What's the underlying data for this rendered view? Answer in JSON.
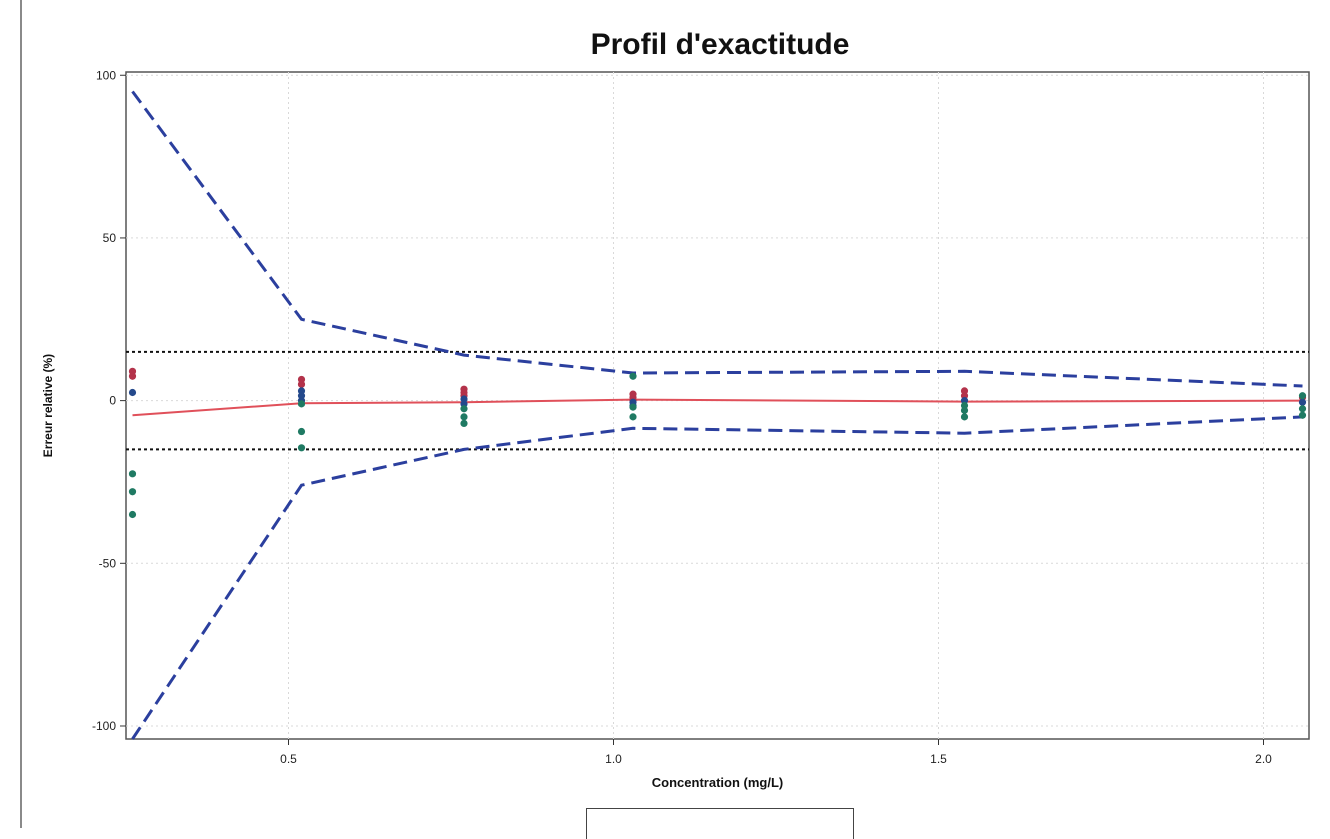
{
  "chart_data": {
    "type": "scatter",
    "title": "Profil d'exactitude",
    "xlabel": "Concentration (mg/L)",
    "ylabel": "Erreur relative (%)",
    "xlim": [
      0.25,
      2.07
    ],
    "ylim": [
      -104,
      101
    ],
    "x_ticks": [
      0.5,
      1.0,
      1.5,
      2.0
    ],
    "x_tick_labels": [
      "0.5",
      "1.0",
      "1.5",
      "2.0"
    ],
    "y_ticks": [
      -100,
      -50,
      0,
      50,
      100
    ],
    "y_tick_labels": [
      "-100",
      "-50",
      "0",
      "50",
      "100"
    ],
    "grid": true,
    "acceptance_limits": [
      15,
      -15
    ],
    "series": [
      {
        "role": "mean_bias",
        "color": "#e0505a",
        "x": [
          0.26,
          0.52,
          0.77,
          1.03,
          1.54,
          2.06
        ],
        "y": [
          -4.5,
          -0.8,
          -0.5,
          0.3,
          -0.3,
          0.0
        ]
      },
      {
        "role": "upper_tolerance",
        "color": "#2b3f9e",
        "x": [
          0.26,
          0.52,
          0.77,
          1.03,
          1.54,
          2.06
        ],
        "y": [
          95,
          25,
          14,
          8.5,
          9,
          4.5
        ]
      },
      {
        "role": "lower_tolerance",
        "color": "#2b3f9e",
        "x": [
          0.26,
          0.52,
          0.77,
          1.03,
          1.54,
          2.06
        ],
        "y": [
          -104,
          -26,
          -15,
          -8.5,
          -10,
          -5
        ]
      },
      {
        "role": "series_1_points",
        "color": "#b3324a",
        "x": [
          0.26,
          0.26,
          0.52,
          0.52,
          0.77,
          0.77,
          0.77,
          1.03,
          1.03,
          1.03,
          1.54,
          1.54,
          2.06
        ],
        "y": [
          9,
          7.5,
          6.5,
          5,
          3.5,
          2.5,
          1.5,
          2,
          1,
          0,
          3,
          1.5,
          1
        ]
      },
      {
        "role": "series_2_points",
        "color": "#24498c",
        "x": [
          0.26,
          0.52,
          0.52,
          0.52,
          0.77,
          0.77,
          1.03,
          1.03,
          1.54,
          2.06
        ],
        "y": [
          2.5,
          3,
          1.5,
          0,
          0.5,
          -1,
          -0.5,
          -1.5,
          0,
          -0.5
        ]
      },
      {
        "role": "series_3_points",
        "color": "#1f7a63",
        "x": [
          0.26,
          0.26,
          0.26,
          0.52,
          0.52,
          0.52,
          0.77,
          0.77,
          0.77,
          1.03,
          1.03,
          1.03,
          1.54,
          1.54,
          1.54,
          2.06,
          2.06,
          2.06
        ],
        "y": [
          -22.5,
          -28,
          -35,
          -1,
          -9.5,
          -14.5,
          -2.5,
          -5,
          -7,
          7.5,
          -2,
          -5,
          -1.5,
          -3,
          -5,
          1.5,
          -2.5,
          -4.5
        ]
      }
    ]
  }
}
